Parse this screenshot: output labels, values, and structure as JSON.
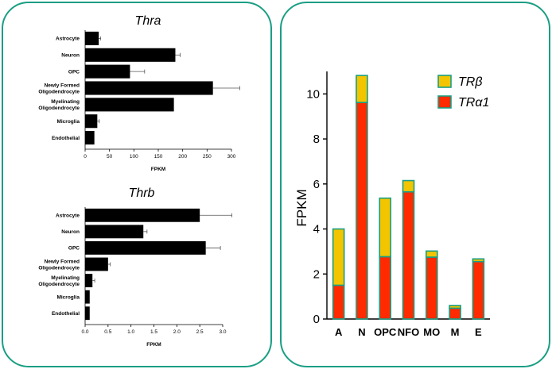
{
  "chart_data": [
    {
      "type": "bar",
      "orientation": "horizontal",
      "title": "Thra",
      "xlabel": "FPKM",
      "xlim": [
        0,
        300
      ],
      "xticks": [
        0,
        50,
        100,
        150,
        200,
        250,
        300
      ],
      "categories": [
        [
          "Astrocyte"
        ],
        [
          "Neuron"
        ],
        [
          "OPC"
        ],
        [
          "Newly Formed",
          "Oligodendrocyte"
        ],
        [
          "Myelinating",
          "Oligodendrocyte"
        ],
        [
          "Microglia"
        ],
        [
          "Endothelial"
        ]
      ],
      "values": [
        28,
        185,
        92,
        262,
        182,
        25,
        19
      ],
      "errors": [
        4,
        10,
        30,
        55,
        0,
        4,
        0
      ],
      "bar_color": "#000000",
      "grid": false
    },
    {
      "type": "bar",
      "orientation": "horizontal",
      "title": "Thrb",
      "xlabel": "FPKM",
      "xlim": [
        0,
        3.0
      ],
      "xticks": [
        "0.0",
        "0.5",
        "1.0",
        "1.5",
        "2.0",
        "2.5",
        "3.0"
      ],
      "categories": [
        [
          "Astrocyte"
        ],
        [
          "Neuron"
        ],
        [
          "OPC"
        ],
        [
          "Newly Formed",
          "Oligodendrocyte"
        ],
        [
          "Myelinating",
          "Oligodendrocyte"
        ],
        [
          "Microglia"
        ],
        [
          "Endothelial"
        ]
      ],
      "values": [
        2.5,
        1.27,
        2.63,
        0.5,
        0.16,
        0.1,
        0.1
      ],
      "errors": [
        0.7,
        0.08,
        0.32,
        0.05,
        0.05,
        0,
        0
      ],
      "bar_color": "#000000",
      "grid": false
    },
    {
      "type": "bar",
      "stacked": true,
      "ylabel": "FPKM",
      "ylim": [
        0,
        11
      ],
      "yticks": [
        0,
        2,
        4,
        6,
        8,
        10
      ],
      "categories": [
        "A",
        "N",
        "OPC",
        "NFO",
        "MO",
        "M",
        "E"
      ],
      "series": [
        {
          "name": "TRα1",
          "color": "#ff2a00",
          "values": [
            1.5,
            9.62,
            2.77,
            5.65,
            2.75,
            0.48,
            2.55
          ]
        },
        {
          "name": "TRβ",
          "color": "#f2c500",
          "values": [
            2.5,
            1.2,
            2.6,
            0.5,
            0.27,
            0.12,
            0.12
          ]
        }
      ],
      "legend_order": [
        "TRβ",
        "TRα1"
      ],
      "legend_position": "top-right",
      "edge_color": "#1a9e84",
      "grid": false
    }
  ]
}
